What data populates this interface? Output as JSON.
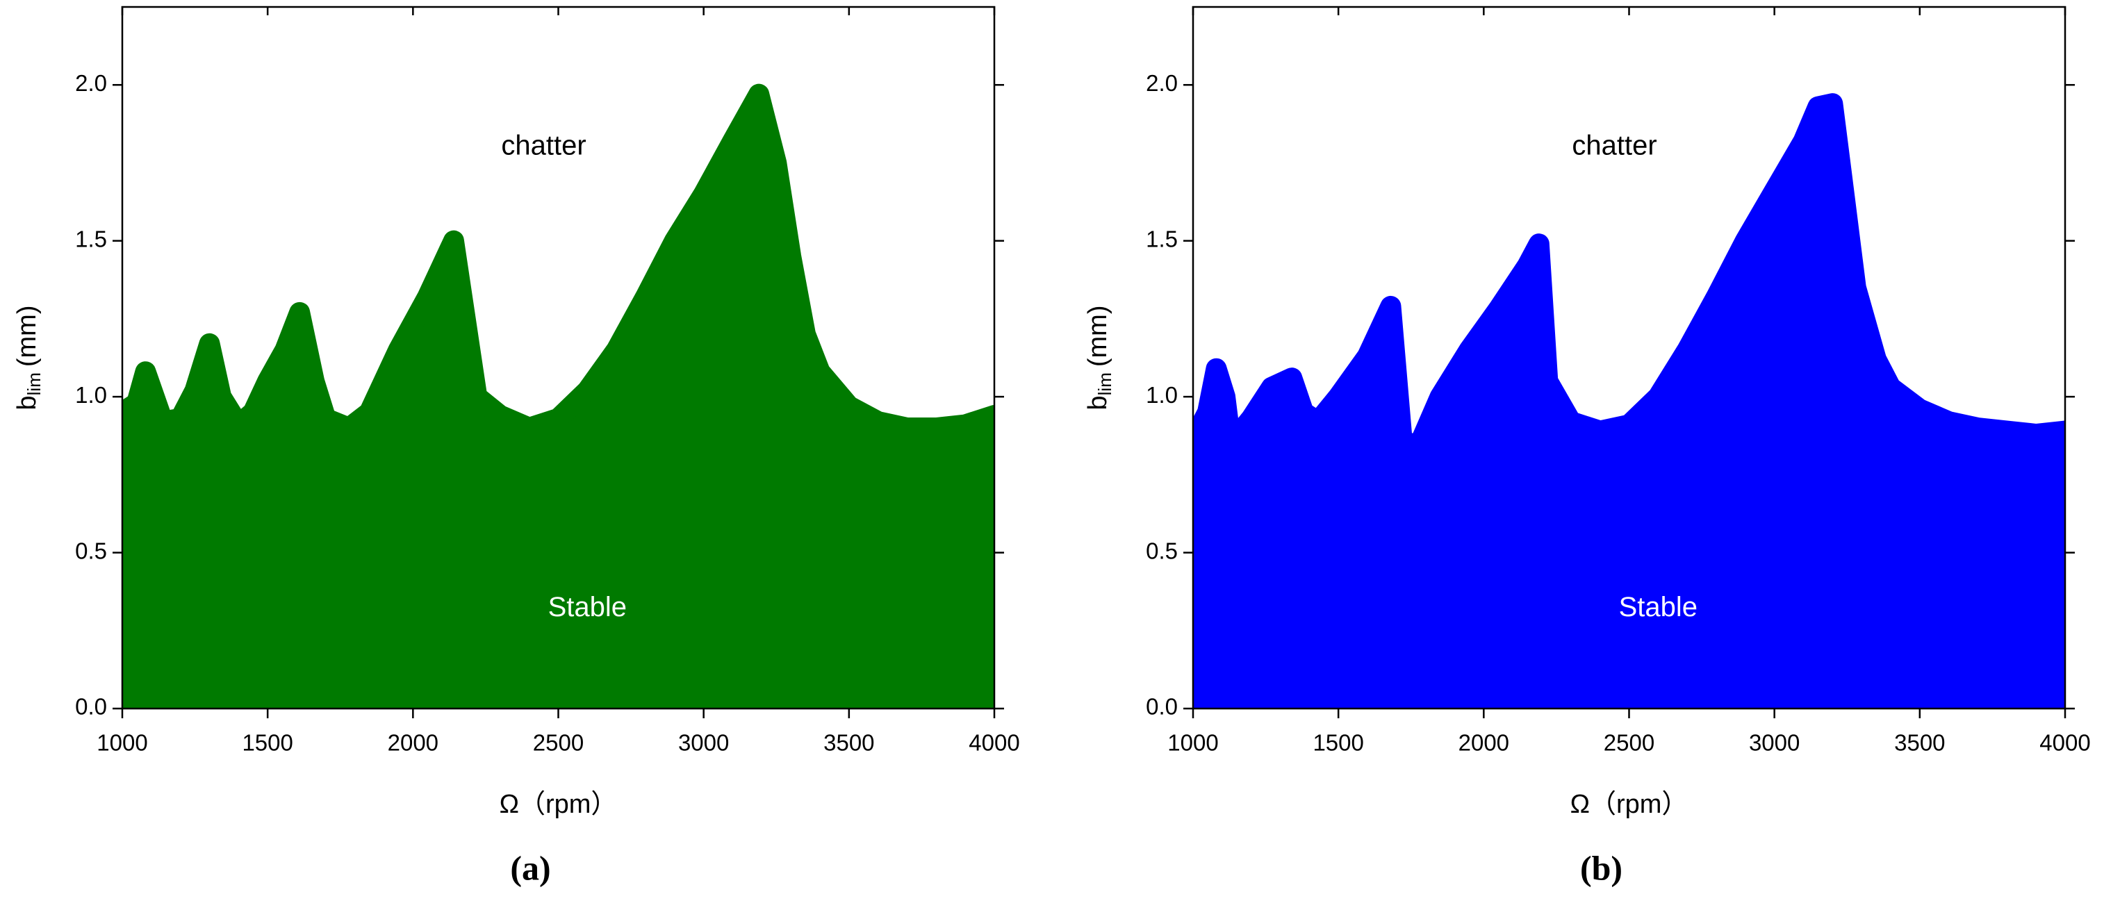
{
  "chart_data": [
    {
      "type": "area",
      "panel_label": "(a)",
      "xlabel": "Ω（rpm）",
      "ylabel": {
        "base": "b",
        "sub": "lim",
        "unit": "(mm)"
      },
      "annotations": [
        {
          "text": "chatter",
          "x": 2450,
          "y": 1.8,
          "color": "#000000"
        },
        {
          "text": "Stable",
          "x": 2600,
          "y": 0.32,
          "color": "#ffffff"
        }
      ],
      "x": [
        1000,
        1050,
        1080,
        1110,
        1140,
        1200,
        1250,
        1300,
        1340,
        1400,
        1450,
        1500,
        1560,
        1610,
        1660,
        1700,
        1780,
        1850,
        1950,
        2050,
        2140,
        2180,
        2220,
        2300,
        2400,
        2500,
        2600,
        2700,
        2800,
        2900,
        3000,
        3100,
        3190,
        3250,
        3300,
        3350,
        3400,
        3500,
        3600,
        3700,
        3800,
        3900,
        4000
      ],
      "series": [
        {
          "color": "#007a00",
          "values": [
            0.95,
            0.98,
            1.08,
            1.0,
            0.92,
            0.93,
            1.02,
            1.17,
            1.0,
            0.91,
            0.95,
            1.05,
            1.15,
            1.27,
            1.05,
            0.93,
            0.9,
            0.95,
            1.15,
            1.32,
            1.5,
            1.25,
            1.0,
            0.94,
            0.9,
            0.93,
            1.02,
            1.15,
            1.32,
            1.5,
            1.65,
            1.82,
            1.97,
            1.75,
            1.45,
            1.2,
            1.08,
            0.97,
            0.92,
            0.9,
            0.9,
            0.91,
            0.94
          ]
        }
      ],
      "xlim": [
        1000,
        4000
      ],
      "xticks": [
        1000,
        1500,
        2000,
        2500,
        3000,
        3500,
        4000
      ],
      "ylim": [
        0,
        2.25
      ],
      "yticks": [
        {
          "value": 0,
          "label": "0.0"
        },
        0.5,
        {
          "value": 1,
          "label": "1.0"
        },
        1.5,
        {
          "value": 2,
          "label": "2.0"
        }
      ]
    },
    {
      "type": "area",
      "panel_label": "(b)",
      "xlabel": "Ω（rpm）",
      "ylabel": {
        "base": "b",
        "sub": "lim",
        "unit": "(mm)"
      },
      "annotations": [
        {
          "text": "chatter",
          "x": 2450,
          "y": 1.8,
          "color": "#000000"
        },
        {
          "text": "Stable",
          "x": 2600,
          "y": 0.32,
          "color": "#ffffff"
        }
      ],
      "x": [
        1000,
        1050,
        1080,
        1110,
        1130,
        1200,
        1270,
        1340,
        1380,
        1430,
        1500,
        1600,
        1680,
        1720,
        1780,
        1850,
        1950,
        2050,
        2150,
        2190,
        2220,
        2300,
        2400,
        2500,
        2600,
        2700,
        2800,
        2900,
        3000,
        3100,
        3150,
        3200,
        3230,
        3280,
        3350,
        3400,
        3500,
        3600,
        3700,
        3800,
        3900,
        4000
      ],
      "series": [
        {
          "color": "#0000ff",
          "values": [
            0.86,
            0.95,
            1.09,
            1.0,
            0.85,
            0.93,
            1.03,
            1.06,
            0.95,
            0.92,
            1.0,
            1.13,
            1.29,
            0.85,
            0.85,
            1.0,
            1.15,
            1.28,
            1.42,
            1.49,
            1.05,
            0.92,
            0.89,
            0.91,
            1.0,
            1.15,
            1.32,
            1.5,
            1.66,
            1.82,
            1.93,
            1.94,
            1.72,
            1.35,
            1.12,
            1.03,
            0.96,
            0.92,
            0.9,
            0.89,
            0.88,
            0.89
          ]
        }
      ],
      "xlim": [
        1000,
        4000
      ],
      "xticks": [
        1000,
        1500,
        2000,
        2500,
        3000,
        3500,
        4000
      ],
      "ylim": [
        0,
        2.25
      ],
      "yticks": [
        {
          "value": 0,
          "label": "0.0"
        },
        0.5,
        {
          "value": 1,
          "label": "1.0"
        },
        1.5,
        {
          "value": 2,
          "label": "2.0"
        }
      ]
    }
  ]
}
